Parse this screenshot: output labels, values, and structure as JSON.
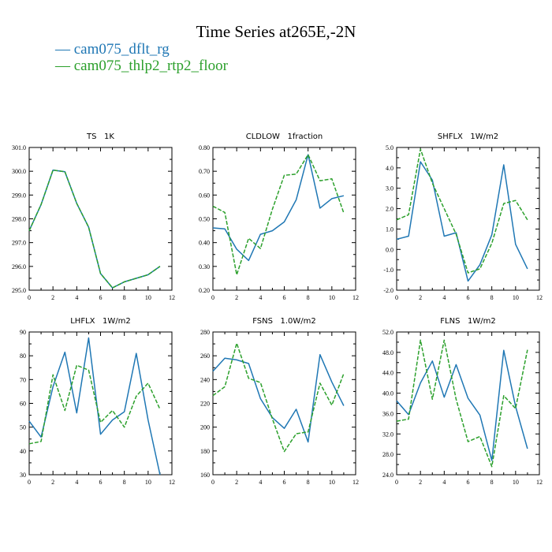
{
  "title": "Time Series at265E,-2N",
  "legend": [
    {
      "label": "cam075_dflt_rg",
      "color": "#1f77b4"
    },
    {
      "label": "cam075_thlp2_rtp2_floor",
      "color": "#2ca02c"
    }
  ],
  "chart_data": [
    {
      "type": "line",
      "title": "TS   1K",
      "x": [
        0,
        1,
        2,
        3,
        4,
        5,
        6,
        7,
        8,
        9,
        10,
        11
      ],
      "xlim": [
        0,
        12
      ],
      "xticks": [
        "0",
        "2",
        "4",
        "6",
        "8",
        "10",
        "12"
      ],
      "ylim": [
        295.0,
        301.0
      ],
      "yticks": [
        "295.0",
        "296.0",
        "297.0",
        "298.0",
        "299.0",
        "300.0",
        "301.0"
      ],
      "series": [
        {
          "name": "cam075_dflt_rg",
          "values": [
            297.5,
            298.6,
            300.05,
            299.98,
            298.65,
            297.65,
            295.7,
            295.1,
            295.35,
            295.5,
            295.65,
            296.0
          ]
        },
        {
          "name": "cam075_thlp2_rtp2_floor",
          "values": [
            297.5,
            298.6,
            300.05,
            299.98,
            298.65,
            297.65,
            295.7,
            295.1,
            295.35,
            295.5,
            295.65,
            296.0
          ]
        }
      ]
    },
    {
      "type": "line",
      "title": "CLDLOW   1fraction",
      "x": [
        0,
        1,
        2,
        3,
        4,
        5,
        6,
        7,
        8,
        9,
        10,
        11
      ],
      "xlim": [
        0,
        12
      ],
      "xticks": [
        "0",
        "2",
        "4",
        "6",
        "8",
        "10",
        "12"
      ],
      "ylim": [
        0.2,
        0.8
      ],
      "yticks": [
        "0.20",
        "0.30",
        "0.40",
        "0.50",
        "0.60",
        "0.70",
        "0.80"
      ],
      "series": [
        {
          "name": "cam075_dflt_rg",
          "values": [
            0.462,
            0.458,
            0.372,
            0.325,
            0.435,
            0.45,
            0.487,
            0.58,
            0.77,
            0.545,
            0.585,
            0.597
          ]
        },
        {
          "name": "cam075_thlp2_rtp2_floor",
          "values": [
            0.553,
            0.527,
            0.265,
            0.418,
            0.375,
            0.54,
            0.683,
            0.688,
            0.77,
            0.66,
            0.668,
            0.525
          ]
        }
      ]
    },
    {
      "type": "line",
      "title": "SHFLX   1W/m2",
      "x": [
        0,
        1,
        2,
        3,
        4,
        5,
        6,
        7,
        8,
        9,
        10,
        11
      ],
      "xlim": [
        0,
        12
      ],
      "xticks": [
        "0",
        "2",
        "4",
        "6",
        "8",
        "10",
        "12"
      ],
      "ylim": [
        -2.0,
        5.0
      ],
      "yticks": [
        "-2.0",
        "-1.0",
        "0.0",
        "1.0",
        "2.0",
        "3.0",
        "4.0",
        "5.0"
      ],
      "series": [
        {
          "name": "cam075_dflt_rg",
          "values": [
            0.5,
            0.65,
            4.3,
            3.4,
            0.65,
            0.82,
            -1.55,
            -0.75,
            0.72,
            4.15,
            0.25,
            -0.95
          ]
        },
        {
          "name": "cam075_thlp2_rtp2_floor",
          "values": [
            1.45,
            1.7,
            4.92,
            3.25,
            2.0,
            0.75,
            -1.15,
            -0.95,
            0.3,
            2.25,
            2.4,
            1.45
          ]
        }
      ]
    },
    {
      "type": "line",
      "title": "LHFLX   1W/m2",
      "x": [
        0,
        1,
        2,
        3,
        4,
        5,
        6,
        7,
        8,
        9,
        10,
        11
      ],
      "xlim": [
        0,
        12
      ],
      "xticks": [
        "0",
        "2",
        "4",
        "6",
        "8",
        "10",
        "12"
      ],
      "ylim": [
        30,
        90
      ],
      "yticks": [
        "30",
        "40",
        "50",
        "60",
        "70",
        "80",
        "90"
      ],
      "series": [
        {
          "name": "cam075_dflt_rg",
          "values": [
            52.5,
            45.8,
            67,
            81.5,
            56,
            87.5,
            47,
            53,
            56.5,
            81,
            53,
            30
          ]
        },
        {
          "name": "cam075_thlp2_rtp2_floor",
          "values": [
            43,
            44,
            72,
            57,
            76,
            74,
            52,
            57,
            50,
            63,
            68.5,
            57.5
          ]
        }
      ]
    },
    {
      "type": "line",
      "title": "FSNS   1.0W/m2",
      "x": [
        0,
        1,
        2,
        3,
        4,
        5,
        6,
        7,
        8,
        9,
        10,
        11
      ],
      "xlim": [
        0,
        12
      ],
      "xticks": [
        "0",
        "2",
        "4",
        "6",
        "8",
        "10",
        "12"
      ],
      "ylim": [
        160,
        280
      ],
      "yticks": [
        "160",
        "180",
        "200",
        "220",
        "240",
        "260",
        "280"
      ],
      "series": [
        {
          "name": "cam075_dflt_rg",
          "values": [
            247,
            258,
            256.5,
            253.5,
            224,
            208,
            199,
            215,
            187.5,
            261,
            238,
            218
          ]
        },
        {
          "name": "cam075_thlp2_rtp2_floor",
          "values": [
            226.5,
            234,
            270.5,
            241,
            237.5,
            207,
            179.5,
            194.5,
            196,
            237,
            218.5,
            245
          ]
        }
      ]
    },
    {
      "type": "line",
      "title": "FLNS   1W/m2",
      "x": [
        0,
        1,
        2,
        3,
        4,
        5,
        6,
        7,
        8,
        9,
        10,
        11
      ],
      "xlim": [
        0,
        12
      ],
      "xticks": [
        "0",
        "2",
        "4",
        "6",
        "8",
        "10",
        "12"
      ],
      "ylim": [
        24.0,
        52.0
      ],
      "yticks": [
        "24.0",
        "28.0",
        "32.0",
        "36.0",
        "40.0",
        "44.0",
        "48.0",
        "52.0"
      ],
      "series": [
        {
          "name": "cam075_dflt_rg",
          "values": [
            38.5,
            35.8,
            42,
            46.3,
            39.2,
            45.6,
            39,
            35.7,
            26.8,
            48.4,
            37.4,
            29.1
          ]
        },
        {
          "name": "cam075_thlp2_rtp2_floor",
          "values": [
            34.5,
            34.9,
            50.4,
            38.8,
            50.4,
            38.8,
            30.5,
            31.5,
            25.6,
            39.5,
            37,
            48.5
          ]
        }
      ]
    }
  ]
}
